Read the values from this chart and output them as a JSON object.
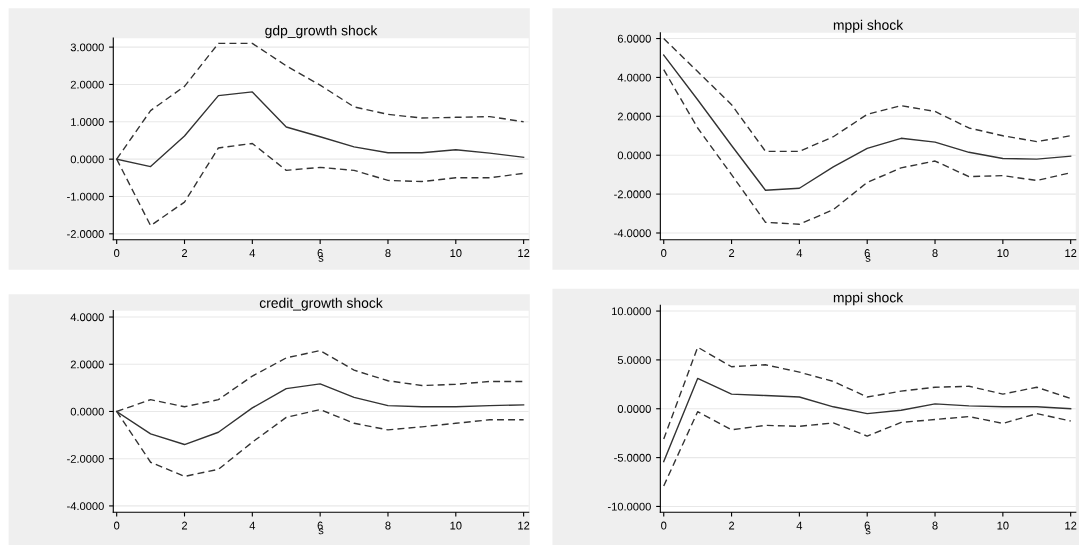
{
  "chart_data": [
    {
      "type": "line",
      "title": "gdp_growth shock",
      "xlabel": "s",
      "x": [
        0,
        1,
        2,
        3,
        4,
        5,
        6,
        7,
        8,
        9,
        10,
        11,
        12
      ],
      "xlim": [
        -0.1,
        12.15
      ],
      "xticks": [
        0,
        2,
        4,
        6,
        8,
        10,
        12
      ],
      "ylim": [
        -2.16,
        3.24
      ],
      "yticks": [
        {
          "value": -2,
          "label": "-2.0000"
        },
        {
          "value": -1,
          "label": "-1.0000"
        },
        {
          "value": 0,
          "label": "0.0000"
        },
        {
          "value": 1,
          "label": "1.0000"
        },
        {
          "value": 2,
          "label": "2.0000"
        },
        {
          "value": 3,
          "label": "3.0000"
        }
      ],
      "grid": "y",
      "legend": false,
      "series": [
        {
          "color": "#333333",
          "line_style": "solid",
          "values": [
            0,
            -0.2,
            0.62,
            1.7,
            1.8,
            0.86,
            0.6,
            0.33,
            0.17,
            0.17,
            0.25,
            0.16,
            0.05
          ]
        },
        {
          "color": "#333333",
          "line_style": "dashed",
          "values": [
            0,
            1.3,
            1.95,
            3.1,
            3.1,
            2.5,
            1.98,
            1.4,
            1.2,
            1.1,
            1.12,
            1.14,
            1.0
          ]
        },
        {
          "color": "#333333",
          "line_style": "dashed",
          "values": [
            0,
            -1.78,
            -1.15,
            0.3,
            0.42,
            -0.3,
            -0.22,
            -0.3,
            -0.57,
            -0.6,
            -0.5,
            -0.5,
            -0.38
          ]
        }
      ]
    },
    {
      "type": "line",
      "title": "mppi shock",
      "xlabel": "s",
      "x": [
        0,
        1,
        2,
        3,
        4,
        5,
        6,
        7,
        8,
        9,
        10,
        11,
        12
      ],
      "xlim": [
        -0.1,
        12.15
      ],
      "xticks": [
        0,
        2,
        4,
        6,
        8,
        10,
        12
      ],
      "ylim": [
        -4.35,
        6.3
      ],
      "yticks": [
        {
          "value": -4,
          "label": "-4.0000"
        },
        {
          "value": -2,
          "label": "-2.0000"
        },
        {
          "value": 0,
          "label": "0.0000"
        },
        {
          "value": 2,
          "label": "2.0000"
        },
        {
          "value": 4,
          "label": "4.0000"
        },
        {
          "value": 6,
          "label": "6.0000"
        }
      ],
      "grid": "y",
      "legend": false,
      "series": [
        {
          "color": "#333333",
          "line_style": "solid",
          "values": [
            5.15,
            2.85,
            0.5,
            -1.8,
            -1.7,
            -0.6,
            0.35,
            0.87,
            0.67,
            0.15,
            -0.17,
            -0.2,
            -0.05
          ]
        },
        {
          "color": "#333333",
          "line_style": "dashed",
          "values": [
            6.0,
            4.3,
            2.6,
            0.2,
            0.2,
            0.95,
            2.1,
            2.55,
            2.25,
            1.4,
            1.0,
            0.7,
            1.0
          ]
        },
        {
          "color": "#333333",
          "line_style": "dashed",
          "values": [
            4.4,
            1.4,
            -1.0,
            -3.45,
            -3.55,
            -2.8,
            -1.4,
            -0.65,
            -0.3,
            -1.1,
            -1.05,
            -1.3,
            -0.9
          ]
        }
      ]
    },
    {
      "type": "line",
      "title": "credit_growth shock",
      "xlabel": "s",
      "x": [
        0,
        1,
        2,
        3,
        4,
        5,
        6,
        7,
        8,
        9,
        10,
        11,
        12
      ],
      "xlim": [
        -0.1,
        12.15
      ],
      "xticks": [
        0,
        2,
        4,
        6,
        8,
        10,
        12
      ],
      "ylim": [
        -4.27,
        4.27
      ],
      "yticks": [
        {
          "value": -4,
          "label": "-4.0000"
        },
        {
          "value": -2,
          "label": "-2.0000"
        },
        {
          "value": 0,
          "label": "0.0000"
        },
        {
          "value": 2,
          "label": "2.0000"
        },
        {
          "value": 4,
          "label": "4.0000"
        }
      ],
      "grid": "y",
      "legend": false,
      "series": [
        {
          "color": "#333333",
          "line_style": "solid",
          "values": [
            0,
            -0.95,
            -1.4,
            -0.88,
            0.15,
            0.97,
            1.17,
            0.6,
            0.25,
            0.2,
            0.2,
            0.25,
            0.28
          ]
        },
        {
          "color": "#333333",
          "line_style": "dashed",
          "values": [
            0,
            0.5,
            0.2,
            0.5,
            1.5,
            2.27,
            2.58,
            1.75,
            1.3,
            1.1,
            1.15,
            1.27,
            1.27
          ]
        },
        {
          "color": "#333333",
          "line_style": "dashed",
          "values": [
            0,
            -2.15,
            -2.75,
            -2.45,
            -1.3,
            -0.25,
            0.08,
            -0.5,
            -0.78,
            -0.65,
            -0.5,
            -0.35,
            -0.35
          ]
        }
      ]
    },
    {
      "type": "line",
      "title": "mppi shock",
      "xlabel": "s",
      "x": [
        0,
        1,
        2,
        3,
        4,
        5,
        6,
        7,
        8,
        9,
        10,
        11,
        12
      ],
      "xlim": [
        -0.1,
        12.15
      ],
      "xticks": [
        0,
        2,
        4,
        6,
        8,
        10,
        12
      ],
      "ylim": [
        -10.6,
        10.6
      ],
      "yticks": [
        {
          "value": -10,
          "label": "-10.0000"
        },
        {
          "value": -5,
          "label": "-5.0000"
        },
        {
          "value": 0,
          "label": "0.0000"
        },
        {
          "value": 5,
          "label": "5.0000"
        },
        {
          "value": 10,
          "label": "10.0000"
        }
      ],
      "grid": "y",
      "legend": false,
      "series": [
        {
          "color": "#333333",
          "line_style": "solid",
          "values": [
            -5.4,
            3.1,
            1.5,
            1.35,
            1.2,
            0.2,
            -0.5,
            -0.15,
            0.5,
            0.3,
            0.2,
            0.2,
            0.0
          ]
        },
        {
          "color": "#333333",
          "line_style": "dashed",
          "values": [
            -3.1,
            6.3,
            4.3,
            4.5,
            3.75,
            2.8,
            1.2,
            1.8,
            2.2,
            2.3,
            1.5,
            2.2,
            1.05
          ]
        },
        {
          "color": "#333333",
          "line_style": "dashed",
          "values": [
            -7.9,
            -0.3,
            -2.15,
            -1.7,
            -1.8,
            -1.45,
            -2.8,
            -1.4,
            -1.1,
            -0.8,
            -1.5,
            -0.5,
            -1.25
          ]
        }
      ]
    }
  ]
}
